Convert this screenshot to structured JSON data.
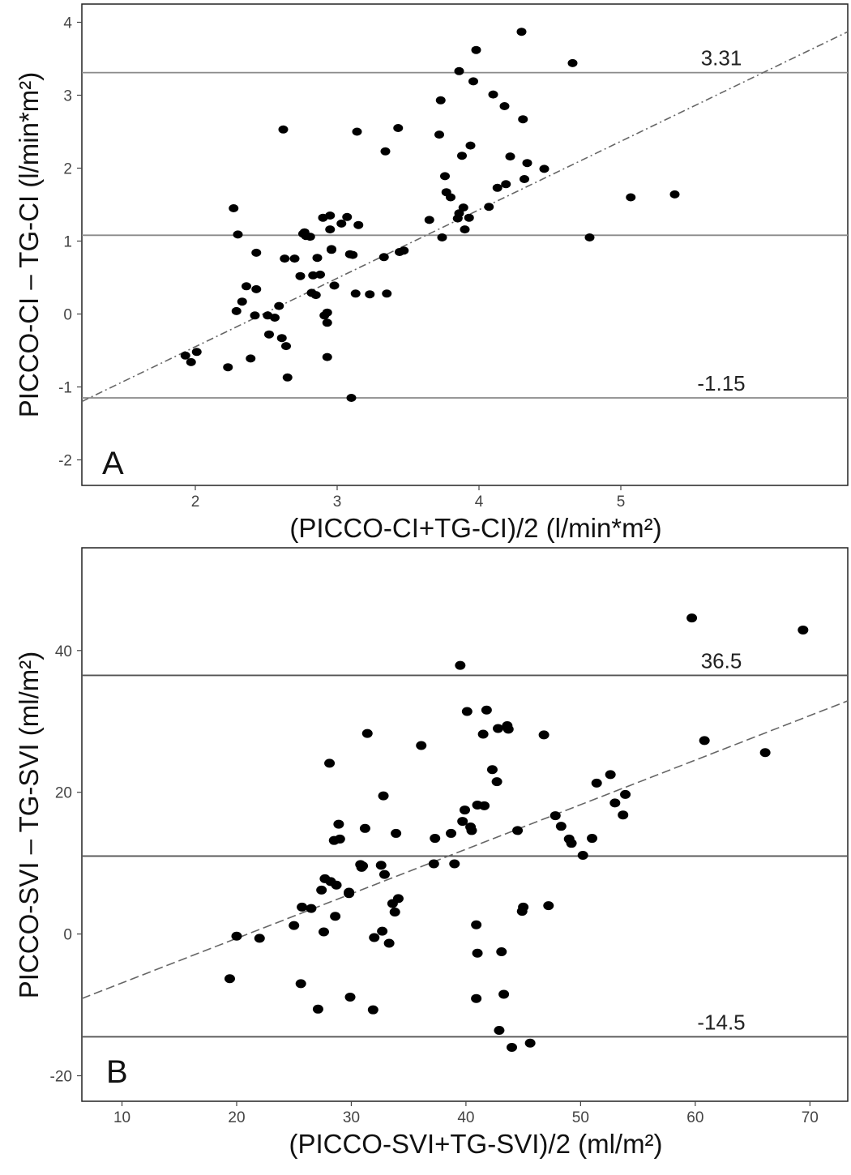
{
  "chart_data": [
    {
      "type": "scatter",
      "panel_label": "A",
      "xlabel": "(PICCO-CI+TG-CI)/2 (l/min*m²)",
      "ylabel": "PICCO-CI – TG-CI (l/min*m²)",
      "xlim": [
        1.2,
        6.6
      ],
      "ylim": [
        -2.35,
        4.25
      ],
      "xticks": [
        2,
        3,
        4,
        5
      ],
      "yticks": [
        -2,
        -1,
        0,
        1,
        2,
        3,
        4
      ],
      "hlines": [
        {
          "y": 3.31,
          "label": "3.31"
        },
        {
          "y": 1.08,
          "label": ""
        },
        {
          "y": -1.15,
          "label": "-1.15"
        }
      ],
      "regression": {
        "x1": 1.2,
        "y1": -1.2,
        "x2": 6.6,
        "y2": 3.87
      },
      "x": [
        1.93,
        1.97,
        2.01,
        2.23,
        2.27,
        2.29,
        2.3,
        2.33,
        2.36,
        2.39,
        2.42,
        2.43,
        2.43,
        2.51,
        2.52,
        2.56,
        2.59,
        2.61,
        2.62,
        2.63,
        2.64,
        2.65,
        2.7,
        2.74,
        2.76,
        2.77,
        2.78,
        2.81,
        2.82,
        2.83,
        2.85,
        2.86,
        2.88,
        2.9,
        2.91,
        2.93,
        2.93,
        2.93,
        2.95,
        2.95,
        2.96,
        2.96,
        2.98,
        3.03,
        3.07,
        3.09,
        3.1,
        3.11,
        3.13,
        3.14,
        3.15,
        3.23,
        3.33,
        3.34,
        3.35,
        3.43,
        3.44,
        3.47,
        3.65,
        3.72,
        3.73,
        3.74,
        3.76,
        3.77,
        3.8,
        3.85,
        3.86,
        3.86,
        3.88,
        3.89,
        3.9,
        3.93,
        3.94,
        3.96,
        3.98,
        4.07,
        4.1,
        4.13,
        4.18,
        4.19,
        4.22,
        4.3,
        4.31,
        4.32,
        4.34,
        4.46,
        4.66,
        4.78,
        5.07,
        5.38
      ],
      "y": [
        -0.57,
        -0.66,
        -0.52,
        -0.73,
        1.45,
        0.04,
        1.09,
        0.17,
        0.38,
        -0.61,
        -0.02,
        0.84,
        0.34,
        -0.02,
        -0.28,
        -0.05,
        0.11,
        -0.33,
        2.53,
        0.76,
        -0.44,
        -0.87,
        0.76,
        0.52,
        1.1,
        1.12,
        1.07,
        1.06,
        0.29,
        0.53,
        0.26,
        0.77,
        0.54,
        1.32,
        -0.02,
        0.02,
        -0.59,
        -0.12,
        1.35,
        1.16,
        0.89,
        0.88,
        0.39,
        1.24,
        1.33,
        0.82,
        -1.15,
        0.81,
        0.28,
        2.5,
        1.22,
        0.27,
        0.78,
        2.23,
        0.28,
        2.55,
        0.85,
        0.87,
        1.29,
        2.46,
        2.93,
        1.05,
        1.89,
        1.67,
        1.6,
        1.31,
        3.33,
        1.38,
        2.17,
        1.46,
        1.16,
        1.32,
        2.31,
        3.19,
        3.62,
        1.47,
        3.01,
        1.73,
        2.85,
        1.78,
        2.16,
        3.87,
        2.67,
        1.85,
        2.07,
        1.99,
        3.44,
        1.05,
        1.6,
        1.64
      ],
      "grid": false
    },
    {
      "type": "scatter",
      "panel_label": "B",
      "xlabel": "(PICCO-SVI+TG-SVI)/2  (ml/m²)",
      "ylabel": "PICCO-SVI – TG-SVI (ml/m²)",
      "xlim": [
        6.5,
        73.3
      ],
      "ylim": [
        -23.6,
        54.5
      ],
      "xticks": [
        10,
        20,
        30,
        40,
        50,
        60,
        70
      ],
      "yticks": [
        -20,
        0,
        20,
        40
      ],
      "hlines": [
        {
          "y": 36.5,
          "label": "36.5"
        },
        {
          "y": 11.0,
          "label": ""
        },
        {
          "y": -14.5,
          "label": "-14.5"
        }
      ],
      "regression": {
        "x1": 6.5,
        "y1": -9.1,
        "x2": 73.3,
        "y2": 32.9
      },
      "x": [
        19.4,
        20.0,
        22.0,
        25.0,
        25.6,
        25.7,
        26.5,
        27.1,
        27.4,
        27.6,
        27.7,
        28.1,
        28.2,
        28.5,
        28.6,
        28.7,
        28.9,
        29.0,
        29.8,
        29.8,
        29.9,
        30.8,
        30.9,
        31.0,
        31.2,
        31.4,
        31.9,
        32.0,
        32.6,
        32.7,
        32.8,
        32.9,
        33.3,
        33.6,
        33.8,
        33.9,
        34.1,
        36.1,
        37.2,
        37.3,
        38.7,
        39.0,
        39.5,
        39.7,
        39.9,
        40.1,
        40.4,
        40.5,
        40.9,
        40.9,
        41.0,
        41.0,
        41.5,
        41.6,
        41.8,
        42.3,
        42.7,
        42.8,
        42.9,
        43.1,
        43.3,
        43.6,
        43.7,
        44.0,
        44.5,
        44.9,
        45.0,
        45.6,
        46.8,
        47.2,
        47.8,
        48.3,
        49.0,
        49.2,
        50.2,
        51.0,
        51.4,
        52.6,
        53.0,
        53.7,
        53.9,
        59.7,
        60.8,
        66.1,
        69.4
      ],
      "y": [
        -6.3,
        -0.3,
        -0.6,
        1.2,
        -7.0,
        3.8,
        3.6,
        -10.6,
        6.2,
        0.3,
        7.8,
        24.1,
        7.4,
        13.2,
        2.5,
        6.9,
        15.5,
        13.4,
        5.9,
        5.7,
        -8.9,
        9.8,
        9.4,
        9.6,
        14.9,
        28.3,
        -10.7,
        -0.5,
        9.7,
        0.4,
        19.5,
        8.4,
        -1.3,
        4.3,
        3.1,
        14.2,
        5.0,
        26.6,
        9.9,
        13.5,
        14.2,
        9.9,
        37.9,
        15.9,
        17.5,
        31.4,
        15.1,
        14.6,
        1.3,
        -9.1,
        -2.7,
        18.2,
        28.2,
        18.1,
        31.6,
        23.2,
        21.5,
        29.0,
        -13.6,
        -2.5,
        -8.5,
        29.4,
        28.9,
        -16.0,
        14.6,
        3.2,
        3.8,
        -15.4,
        28.1,
        4.0,
        16.7,
        15.2,
        13.4,
        12.8,
        11.1,
        13.5,
        21.3,
        22.5,
        18.5,
        16.8,
        19.7,
        44.6,
        27.3,
        25.6,
        42.9
      ],
      "grid": false
    }
  ]
}
